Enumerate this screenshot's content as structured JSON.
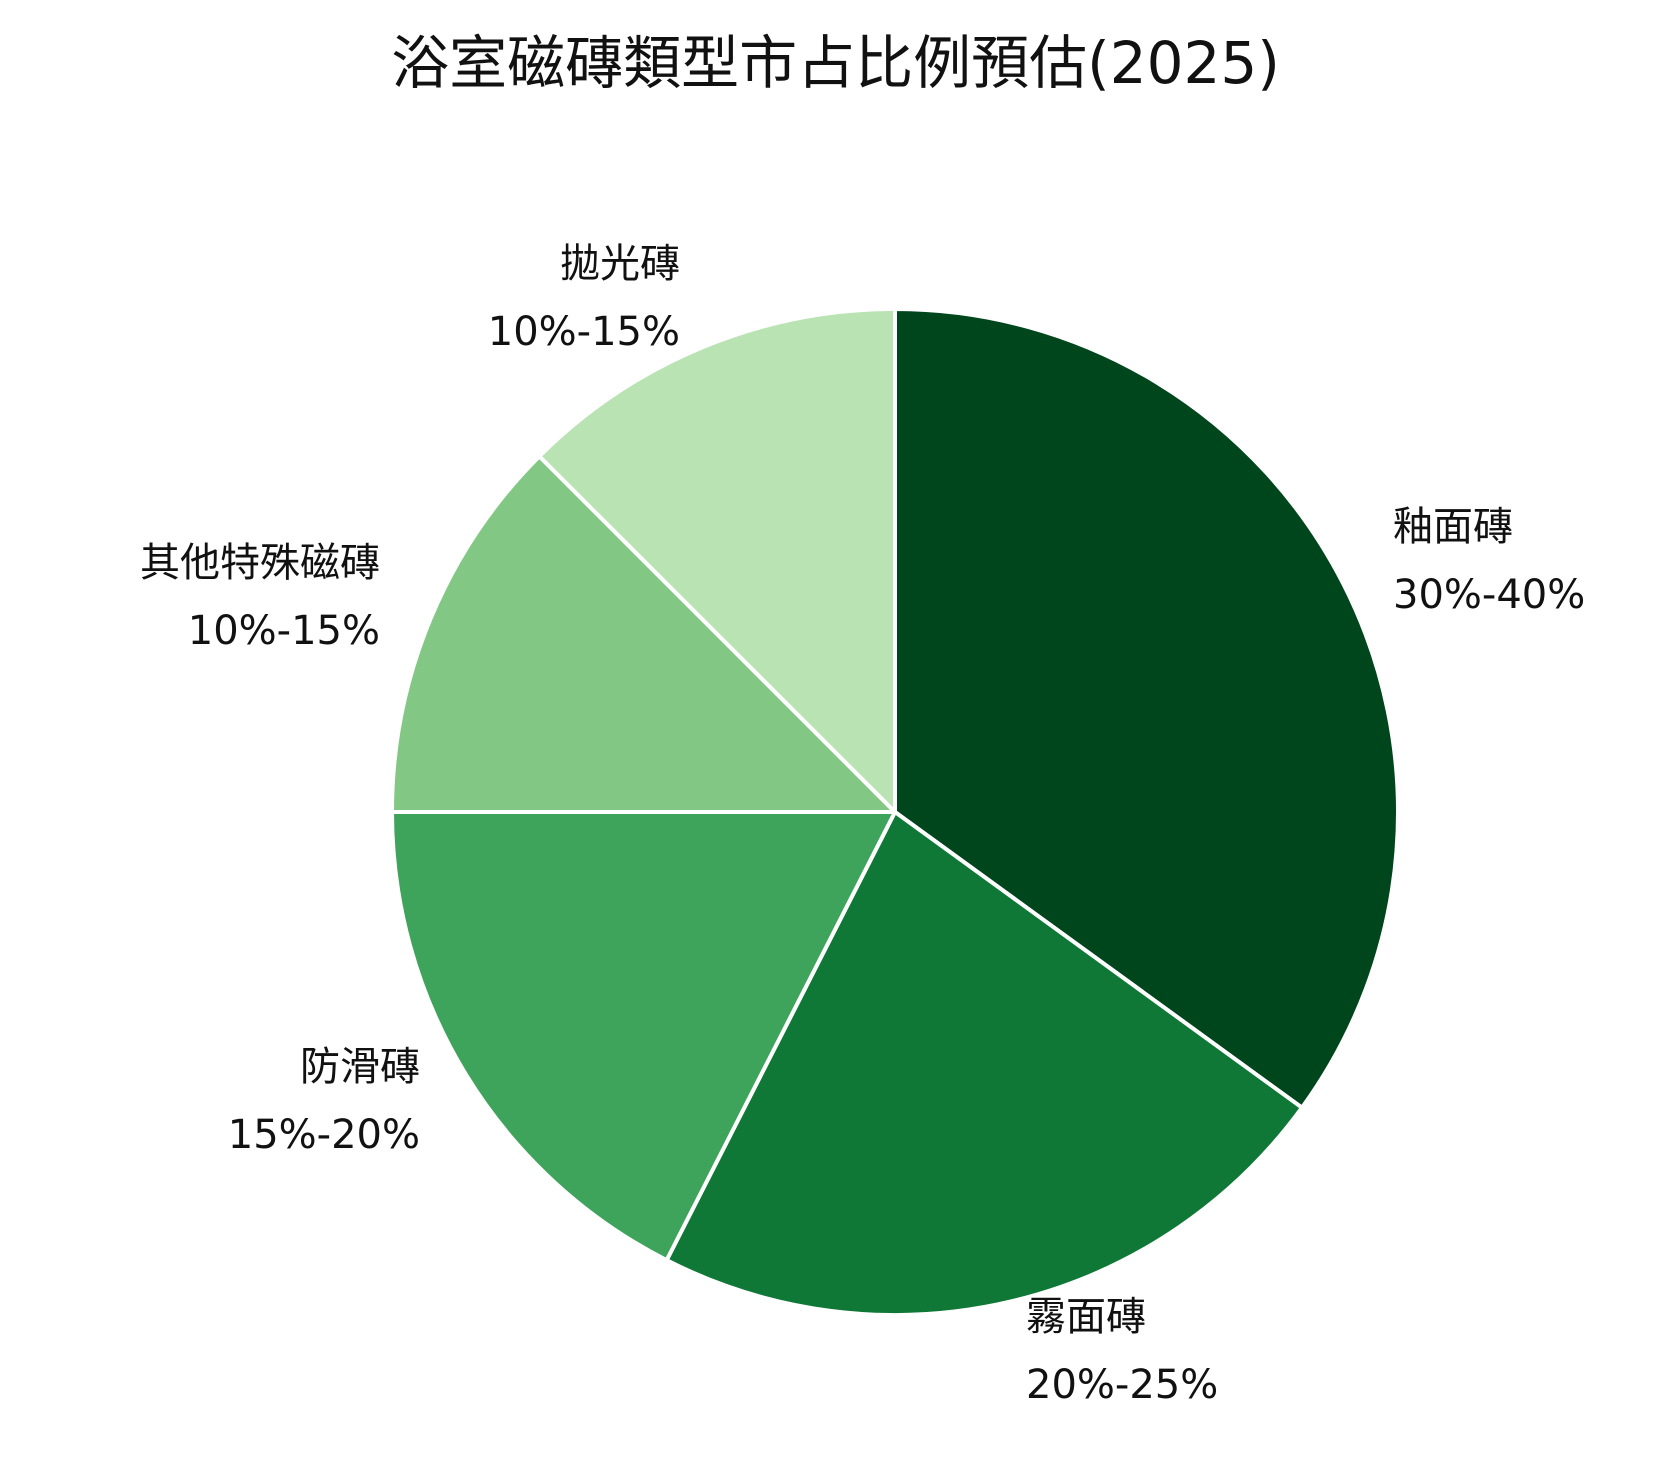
{
  "chart_data": {
    "type": "pie",
    "title": "浴室磁磚類型市占比例預估(2025)",
    "start_angle": "12 o'clock",
    "direction": "clockwise",
    "slices": [
      {
        "name": "釉面磚",
        "range": "30%-40%",
        "value": 35,
        "color": "#00461c"
      },
      {
        "name": "霧面磚",
        "range": "20%-25%",
        "value": 22.5,
        "color": "#0f7836"
      },
      {
        "name": "防滑磚",
        "range": "15%-20%",
        "value": 17.5,
        "color": "#3fa45b"
      },
      {
        "name": "其他特殊磁磚",
        "range": "10%-15%",
        "value": 12.5,
        "color": "#82c784"
      },
      {
        "name": "拋光磚",
        "range": "10%-15%",
        "value": 12.5,
        "color": "#b9e3b3"
      }
    ],
    "slice_border_color": "#ffffff"
  }
}
